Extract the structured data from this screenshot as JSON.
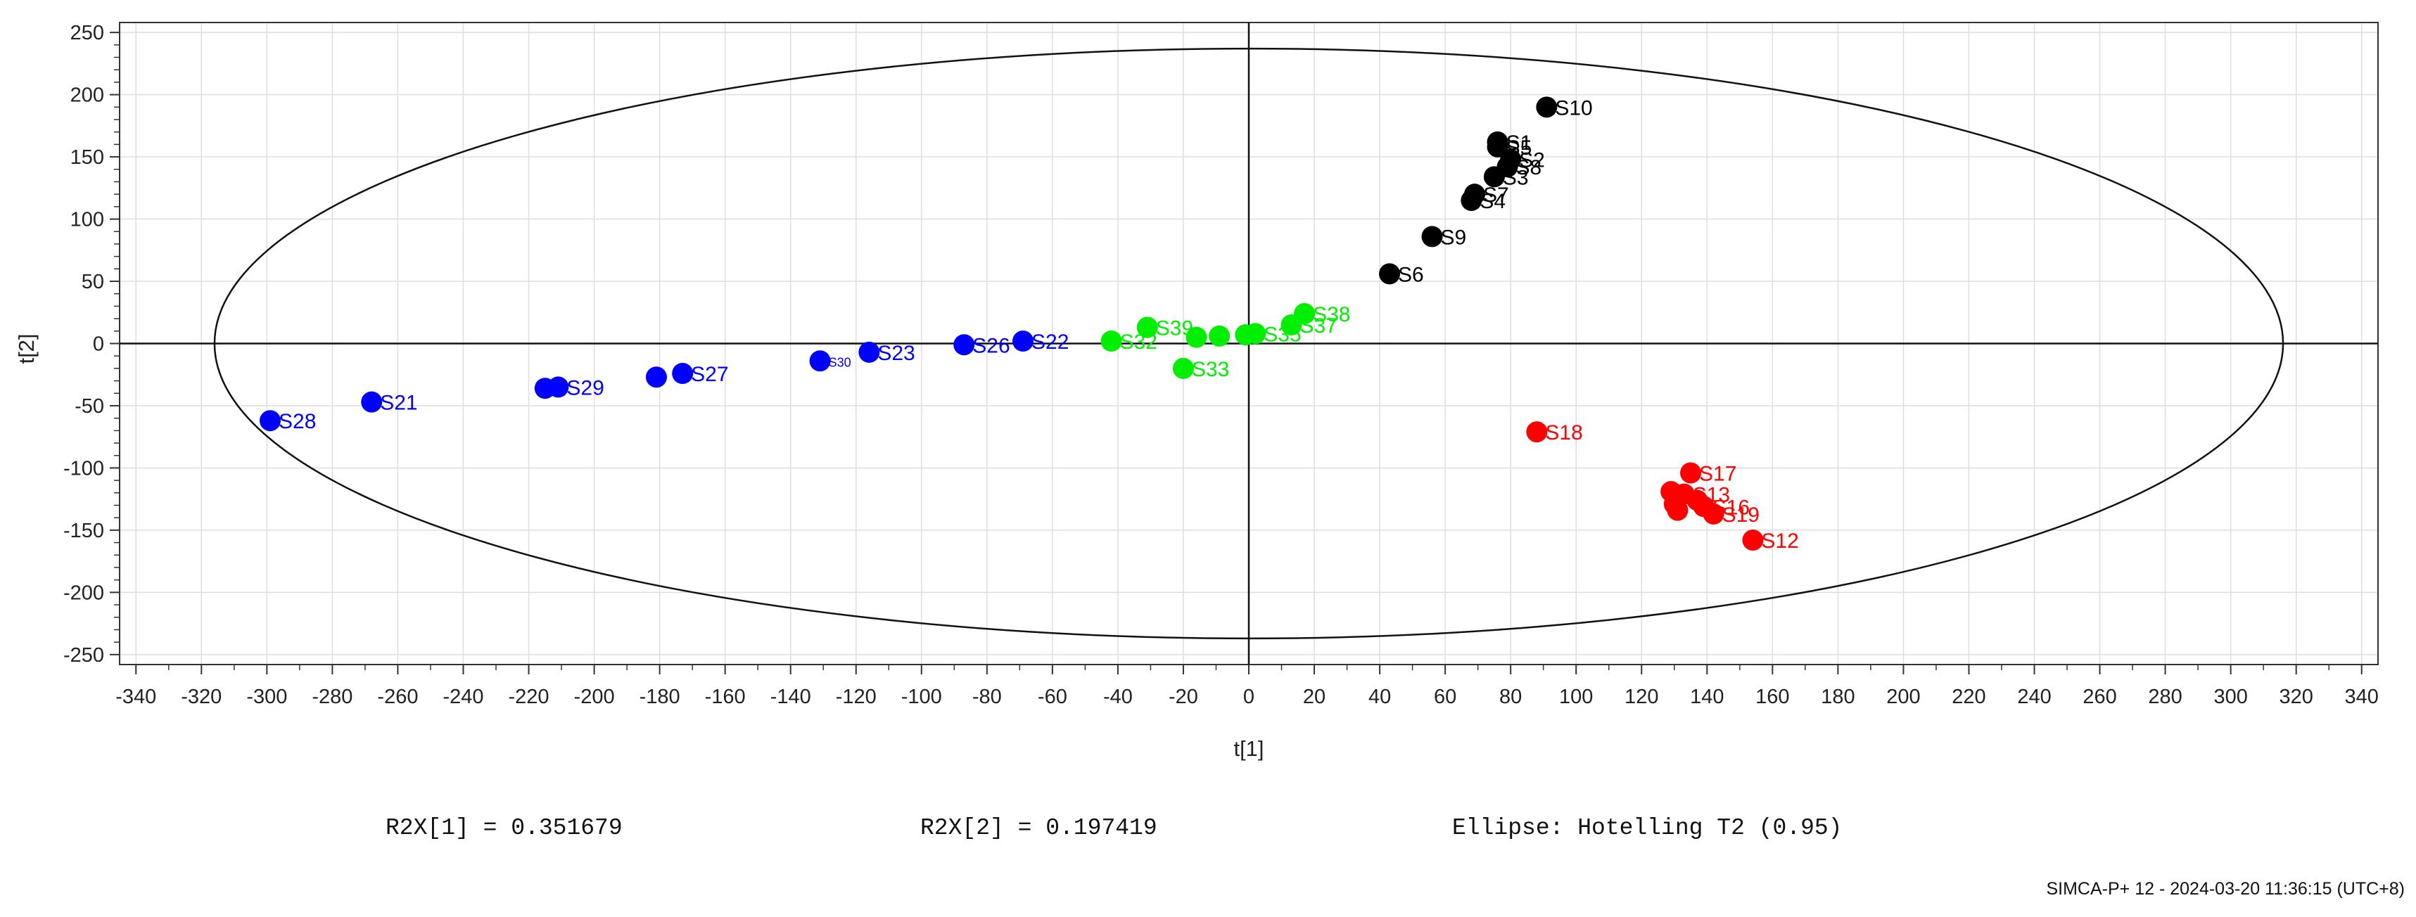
{
  "chart_data": {
    "type": "scatter",
    "title": "",
    "xlabel": "t[1]",
    "ylabel": "t[2]",
    "xlim": [
      -345,
      345
    ],
    "ylim": [
      -258,
      258
    ],
    "x_ticks": [
      -340,
      -320,
      -300,
      -280,
      -260,
      -240,
      -220,
      -200,
      -180,
      -160,
      -140,
      -120,
      -100,
      -80,
      -60,
      -40,
      -20,
      0,
      20,
      40,
      60,
      80,
      100,
      120,
      140,
      160,
      180,
      200,
      220,
      240,
      260,
      280,
      300,
      320,
      340
    ],
    "y_ticks": [
      -250,
      -200,
      -150,
      -100,
      -50,
      0,
      50,
      100,
      150,
      200,
      250
    ],
    "grid": true,
    "ellipse": {
      "label": "Ellipse: Hotelling T2 (0.95)",
      "t1_radius": 316,
      "t2_radius": 237
    },
    "series": [
      {
        "color": "#000000",
        "points": [
          {
            "x": 91,
            "y": 190,
            "label": "S10"
          },
          {
            "x": 76,
            "y": 162,
            "label": "S1"
          },
          {
            "x": 76,
            "y": 158,
            "label": "S5"
          },
          {
            "x": 80,
            "y": 148,
            "label": "S2"
          },
          {
            "x": 79,
            "y": 142,
            "label": "S8"
          },
          {
            "x": 75,
            "y": 134,
            "label": "S3"
          },
          {
            "x": 69,
            "y": 120,
            "label": "S7"
          },
          {
            "x": 68,
            "y": 115,
            "label": "S4"
          },
          {
            "x": 56,
            "y": 86,
            "label": "S9"
          },
          {
            "x": 43,
            "y": 56,
            "label": "S6"
          }
        ]
      },
      {
        "color": "#ff0000",
        "points": [
          {
            "x": 88,
            "y": -71,
            "label": "S18"
          },
          {
            "x": 135,
            "y": -104,
            "label": "S17"
          },
          {
            "x": 129,
            "y": -119,
            "label": ""
          },
          {
            "x": 133,
            "y": -121,
            "label": "S13"
          },
          {
            "x": 137,
            "y": -126,
            "label": ""
          },
          {
            "x": 130,
            "y": -129,
            "label": ""
          },
          {
            "x": 139,
            "y": -131,
            "label": "S16"
          },
          {
            "x": 131,
            "y": -134,
            "label": ""
          },
          {
            "x": 142,
            "y": -137,
            "label": "S19"
          },
          {
            "x": 154,
            "y": -158,
            "label": "S12"
          }
        ]
      },
      {
        "color": "#0000ff",
        "points": [
          {
            "x": -299,
            "y": -62,
            "label": "S28"
          },
          {
            "x": -268,
            "y": -47,
            "label": "S21"
          },
          {
            "x": -215,
            "y": -36,
            "label": ""
          },
          {
            "x": -211,
            "y": -35,
            "label": "S29"
          },
          {
            "x": -181,
            "y": -27,
            "label": ""
          },
          {
            "x": -173,
            "y": -24,
            "label": "S27"
          },
          {
            "x": -131,
            "y": -14,
            "label": "S30"
          },
          {
            "x": -116,
            "y": -7,
            "label": "S23"
          },
          {
            "x": -87,
            "y": -1,
            "label": "S26"
          },
          {
            "x": -69,
            "y": 2,
            "label": "S22"
          }
        ]
      },
      {
        "color": "#00ee00",
        "points": [
          {
            "x": -42,
            "y": 2,
            "label": "S32"
          },
          {
            "x": -31,
            "y": 13,
            "label": "S39"
          },
          {
            "x": -20,
            "y": -20,
            "label": "S33"
          },
          {
            "x": -16,
            "y": 5,
            "label": ""
          },
          {
            "x": -9,
            "y": 6,
            "label": ""
          },
          {
            "x": -1,
            "y": 7,
            "label": ""
          },
          {
            "x": 2,
            "y": 8,
            "label": "S35"
          },
          {
            "x": 13,
            "y": 15,
            "label": "S37"
          },
          {
            "x": 17,
            "y": 24,
            "label": "S38"
          }
        ]
      }
    ],
    "r2x_1": "R2X[1] = 0.351679",
    "r2x_2": "R2X[2] = 0.197419"
  },
  "footer": "SIMCA-P+ 12 - 2024-03-20 11:36:15 (UTC+8)"
}
